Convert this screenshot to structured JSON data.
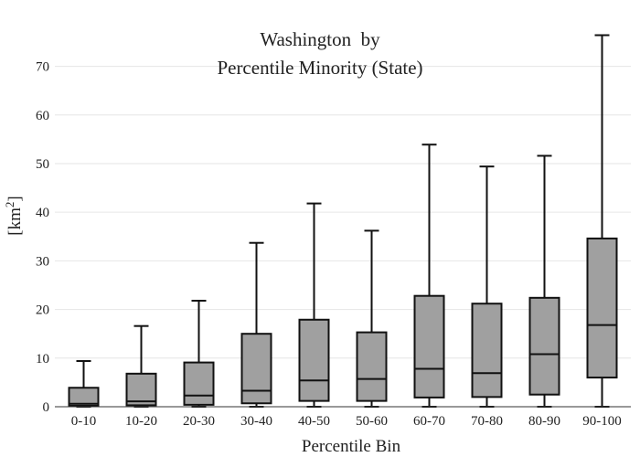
{
  "chart_data": {
    "type": "box",
    "title_line1": "Washington  by",
    "title_line2": "Percentile Minority (State)",
    "xlabel": "Percentile Bin",
    "ylabel": "[km",
    "ylabel_sup": "2",
    "ylabel_close": "]",
    "ylim": [
      0,
      78
    ],
    "yticks": [
      0,
      10,
      20,
      30,
      40,
      50,
      60,
      70
    ],
    "grid": true,
    "box_color": "#a0a0a0",
    "line_color": "#111111",
    "grid_color": "#e6e6e6",
    "categories": [
      "0-10",
      "10-20",
      "20-30",
      "30-40",
      "40-50",
      "50-60",
      "60-70",
      "70-80",
      "80-90",
      "90-100"
    ],
    "boxes": [
      {
        "min": 0,
        "q1": 0.2,
        "median": 0.6,
        "q3": 3.9,
        "max": 9.4
      },
      {
        "min": 0,
        "q1": 0.3,
        "median": 1.1,
        "q3": 6.8,
        "max": 16.6
      },
      {
        "min": 0,
        "q1": 0.4,
        "median": 2.3,
        "q3": 9.1,
        "max": 21.8
      },
      {
        "min": 0,
        "q1": 0.7,
        "median": 3.3,
        "q3": 15.0,
        "max": 33.7
      },
      {
        "min": 0,
        "q1": 1.2,
        "median": 5.4,
        "q3": 17.9,
        "max": 41.8
      },
      {
        "min": 0,
        "q1": 1.2,
        "median": 5.7,
        "q3": 15.3,
        "max": 36.2
      },
      {
        "min": 0,
        "q1": 1.9,
        "median": 7.8,
        "q3": 22.8,
        "max": 53.9
      },
      {
        "min": 0,
        "q1": 2.0,
        "median": 6.9,
        "q3": 21.2,
        "max": 49.4
      },
      {
        "min": 0,
        "q1": 2.5,
        "median": 10.8,
        "q3": 22.4,
        "max": 51.6
      },
      {
        "min": 0,
        "q1": 6.0,
        "median": 16.8,
        "q3": 34.6,
        "max": 76.4
      }
    ]
  }
}
